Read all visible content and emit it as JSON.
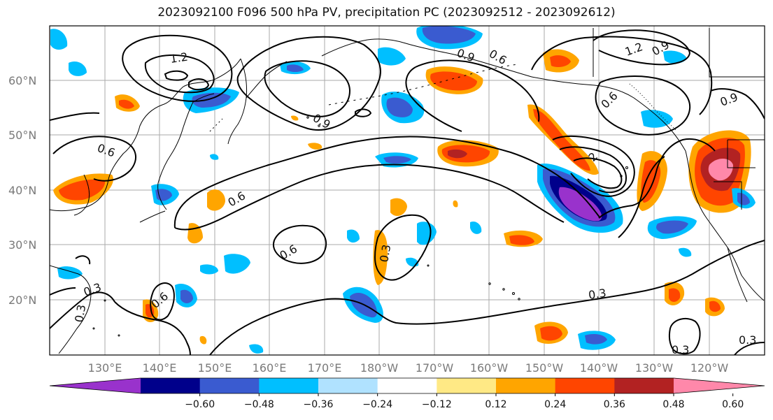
{
  "title": "2023092100 F096 500 hPa PV, precipitation PC (2023092512 - 2023092612)",
  "lat_ticks": [
    "60°N",
    "50°N",
    "40°N",
    "30°N",
    "20°N"
  ],
  "lon_ticks": [
    "130°E",
    "140°E",
    "150°E",
    "160°E",
    "170°E",
    "180°W",
    "170°W",
    "160°W",
    "150°W",
    "140°W",
    "130°W",
    "120°W"
  ],
  "colorbar": {
    "colors": [
      "#9932cc",
      "#00008b",
      "#3a5bd0",
      "#00bfff",
      "#b0e2ff",
      "#ffffff",
      "#ffe985",
      "#ffa500",
      "#ff4500",
      "#b22222",
      "#ff88aa"
    ],
    "labels": [
      "-0.60",
      "-0.48",
      "-0.36",
      "-0.24",
      "-0.12",
      "0.12",
      "0.24",
      "0.36",
      "0.48",
      "0.60"
    ]
  },
  "contour_labels": [
    "1.2",
    "1.2",
    "0.9",
    "0.9",
    "0.9",
    "0.6",
    "0.6",
    "0.6",
    "0.6",
    "0.6",
    "0.6",
    "0.3",
    "0.3",
    "0.3",
    "0.3",
    "0.3",
    "0.3",
    "0.3",
    "1.2",
    "0.9",
    "0.6",
    "0.6"
  ]
}
